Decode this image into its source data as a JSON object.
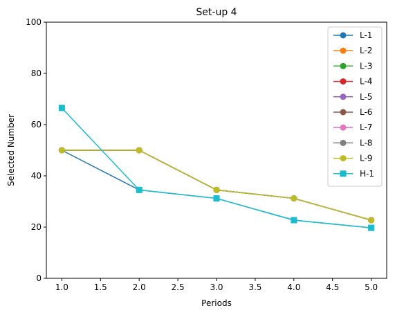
{
  "chart_data": {
    "type": "line",
    "title": "Set-up 4",
    "xlabel": "Periods",
    "ylabel": "Selected Number",
    "xlim": [
      0.8,
      5.2
    ],
    "ylim": [
      0,
      100
    ],
    "xticks": [
      1.0,
      1.5,
      2.0,
      2.5,
      3.0,
      3.5,
      4.0,
      4.5,
      5.0
    ],
    "xtick_labels": [
      "1.0",
      "1.5",
      "2.0",
      "2.5",
      "3.0",
      "3.5",
      "4.0",
      "4.5",
      "5.0"
    ],
    "yticks": [
      0,
      20,
      40,
      60,
      80,
      100
    ],
    "ytick_labels": [
      "0",
      "20",
      "40",
      "60",
      "80",
      "100"
    ],
    "grid": false,
    "legend_position": "top-right",
    "x": [
      1,
      2,
      3,
      4,
      5
    ],
    "series": [
      {
        "name": "L-1",
        "color": "#1f77b4",
        "marker": "circle",
        "values": [
          50,
          34.5,
          31.2,
          22.7,
          19.7
        ]
      },
      {
        "name": "L-2",
        "color": "#ff7f0e",
        "marker": "circle",
        "values": [
          50,
          50,
          34.5,
          31.2,
          22.7
        ]
      },
      {
        "name": "L-3",
        "color": "#2ca02c",
        "marker": "circle",
        "values": [
          50,
          50,
          34.5,
          31.2,
          22.7
        ]
      },
      {
        "name": "L-4",
        "color": "#d62728",
        "marker": "circle",
        "values": [
          50,
          50,
          34.5,
          31.2,
          22.7
        ]
      },
      {
        "name": "L-5",
        "color": "#9467bd",
        "marker": "circle",
        "values": [
          50,
          50,
          34.5,
          31.2,
          22.7
        ]
      },
      {
        "name": "L-6",
        "color": "#8c564b",
        "marker": "circle",
        "values": [
          50,
          50,
          34.5,
          31.2,
          22.7
        ]
      },
      {
        "name": "L-7",
        "color": "#e377c2",
        "marker": "circle",
        "values": [
          50,
          50,
          34.5,
          31.2,
          22.7
        ]
      },
      {
        "name": "L-8",
        "color": "#7f7f7f",
        "marker": "circle",
        "values": [
          50,
          50,
          34.5,
          31.2,
          22.7
        ]
      },
      {
        "name": "L-9",
        "color": "#bcbd22",
        "marker": "circle",
        "values": [
          50,
          50,
          34.5,
          31.2,
          22.7
        ]
      },
      {
        "name": "H-1",
        "color": "#17becf",
        "marker": "square",
        "values": [
          66.5,
          34.5,
          31.2,
          22.7,
          19.7
        ]
      }
    ]
  }
}
